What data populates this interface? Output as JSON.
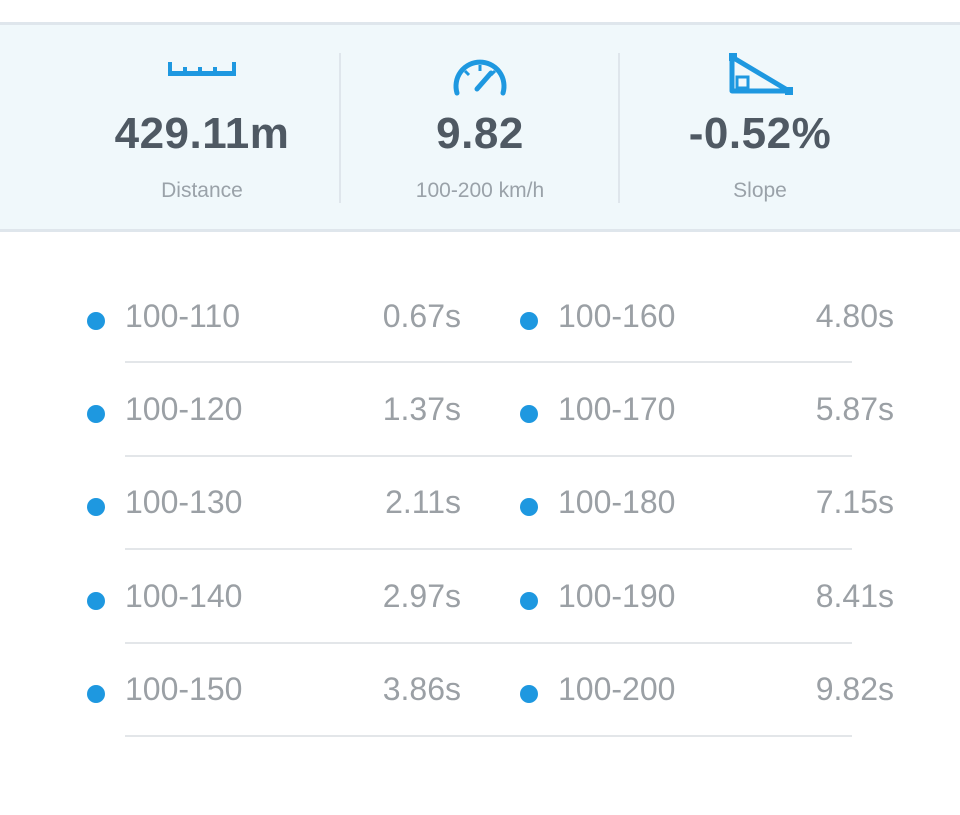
{
  "stats": {
    "distance": {
      "icon": "ruler-icon",
      "value": "429.11m",
      "label": "Distance"
    },
    "speed": {
      "icon": "speedometer-icon",
      "value": "9.82",
      "label": "100-200 km/h"
    },
    "slope": {
      "icon": "slope-triangle-icon",
      "value": "-0.52%",
      "label": "Slope"
    }
  },
  "accent_color": "#1e98e0",
  "results": {
    "left": [
      {
        "range": "100-110",
        "time": "0.67s"
      },
      {
        "range": "100-120",
        "time": "1.37s"
      },
      {
        "range": "100-130",
        "time": "2.11s"
      },
      {
        "range": "100-140",
        "time": "2.97s"
      },
      {
        "range": "100-150",
        "time": "3.86s"
      }
    ],
    "right": [
      {
        "range": "100-160",
        "time": "4.80s"
      },
      {
        "range": "100-170",
        "time": "5.87s"
      },
      {
        "range": "100-180",
        "time": "7.15s"
      },
      {
        "range": "100-190",
        "time": "8.41s"
      },
      {
        "range": "100-200",
        "time": "9.82s"
      }
    ]
  }
}
